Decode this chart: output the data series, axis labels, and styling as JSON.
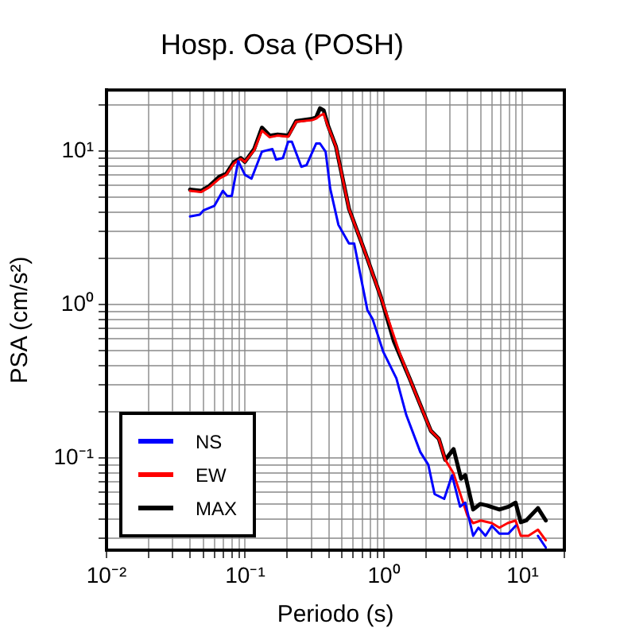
{
  "chart_data": {
    "type": "line",
    "title": "Hosp. Osa (POSH)",
    "xlabel": "Periodo (s)",
    "ylabel": "PSA (cm/s²)",
    "log": "xy",
    "grid": true,
    "legend": "bottom left",
    "marker": "none",
    "line_style": "solid",
    "xlim": [
      0.01,
      20
    ],
    "ylim": [
      0.025,
      25
    ],
    "xticks": [
      {
        "value": 0.01,
        "label": "10⁻²"
      },
      {
        "value": 0.02,
        "label": null
      },
      {
        "value": 0.03,
        "label": null
      },
      {
        "value": 0.04,
        "label": null
      },
      {
        "value": 0.05,
        "label": null
      },
      {
        "value": 0.06,
        "label": null
      },
      {
        "value": 0.07,
        "label": null
      },
      {
        "value": 0.08,
        "label": null
      },
      {
        "value": 0.09,
        "label": null
      },
      {
        "value": 0.1,
        "label": "10⁻¹"
      },
      {
        "value": 0.2,
        "label": null
      },
      {
        "value": 0.3,
        "label": null
      },
      {
        "value": 0.4,
        "label": null
      },
      {
        "value": 0.5,
        "label": null
      },
      {
        "value": 0.6,
        "label": null
      },
      {
        "value": 0.7,
        "label": null
      },
      {
        "value": 0.8,
        "label": null
      },
      {
        "value": 0.9,
        "label": null
      },
      {
        "value": 1,
        "label": "10⁰"
      },
      {
        "value": 2,
        "label": null
      },
      {
        "value": 3,
        "label": null
      },
      {
        "value": 4,
        "label": null
      },
      {
        "value": 5,
        "label": null
      },
      {
        "value": 6,
        "label": null
      },
      {
        "value": 7,
        "label": null
      },
      {
        "value": 8,
        "label": null
      },
      {
        "value": 9,
        "label": null
      },
      {
        "value": 10,
        "label": "10¹"
      },
      {
        "value": 20,
        "label": null
      }
    ],
    "yticks": [
      {
        "value": 0.03,
        "label": null
      },
      {
        "value": 0.04,
        "label": null
      },
      {
        "value": 0.05,
        "label": null
      },
      {
        "value": 0.06,
        "label": null
      },
      {
        "value": 0.07,
        "label": null
      },
      {
        "value": 0.08,
        "label": null
      },
      {
        "value": 0.09,
        "label": null
      },
      {
        "value": 0.1,
        "label": "10⁻¹"
      },
      {
        "value": 0.2,
        "label": null
      },
      {
        "value": 0.3,
        "label": null
      },
      {
        "value": 0.4,
        "label": null
      },
      {
        "value": 0.5,
        "label": null
      },
      {
        "value": 0.6,
        "label": null
      },
      {
        "value": 0.7,
        "label": null
      },
      {
        "value": 0.8,
        "label": null
      },
      {
        "value": 0.9,
        "label": null
      },
      {
        "value": 1,
        "label": "10⁰"
      },
      {
        "value": 2,
        "label": null
      },
      {
        "value": 3,
        "label": null
      },
      {
        "value": 4,
        "label": null
      },
      {
        "value": 5,
        "label": null
      },
      {
        "value": 6,
        "label": null
      },
      {
        "value": 7,
        "label": null
      },
      {
        "value": 8,
        "label": null
      },
      {
        "value": 9,
        "label": null
      },
      {
        "value": 10,
        "label": "10¹"
      },
      {
        "value": 20,
        "label": null
      }
    ],
    "series": [
      {
        "name": "NS",
        "color": "#0000ff",
        "x": [
          0.04,
          0.047,
          0.05,
          0.06,
          0.069,
          0.074,
          0.08,
          0.089,
          0.0995,
          0.111,
          0.132,
          0.143,
          0.157,
          0.167,
          0.187,
          0.204,
          0.217,
          0.254,
          0.277,
          0.325,
          0.346,
          0.38,
          0.41,
          0.47,
          0.56,
          0.61,
          0.76,
          0.83,
          0.99,
          1.23,
          1.45,
          1.83,
          2.09,
          2.32,
          2.72,
          3.1,
          3.54,
          3.86,
          4.4,
          4.8,
          5.4,
          6.0,
          6.8,
          7.9,
          8.9,
          10,
          10.8,
          12.9,
          14.7
        ],
        "values": [
          3.75,
          3.85,
          4.1,
          4.4,
          5.5,
          5.1,
          5.1,
          8.6,
          7.0,
          6.6,
          9.9,
          10.1,
          10.3,
          8.8,
          9.0,
          11.5,
          11.5,
          7.9,
          8.1,
          11.2,
          11.2,
          9.9,
          5.7,
          3.3,
          2.5,
          2.5,
          0.92,
          0.8,
          0.49,
          0.33,
          0.19,
          0.109,
          0.09,
          0.058,
          0.054,
          0.077,
          0.048,
          0.051,
          0.031,
          0.035,
          0.031,
          0.036,
          0.032,
          0.032,
          0.036,
          null,
          null,
          0.031,
          0.026
        ]
      },
      {
        "name": "EW",
        "color": "#ff0000",
        "x": [
          0.04,
          0.048,
          0.055,
          0.065,
          0.073,
          0.083,
          0.093,
          0.0995,
          0.116,
          0.132,
          0.15,
          0.171,
          0.204,
          0.233,
          0.303,
          0.325,
          0.346,
          0.368,
          0.395,
          0.451,
          0.56,
          0.73,
          0.95,
          1.29,
          1.53,
          2.18,
          2.49,
          2.77,
          3.18,
          4.0,
          4.4,
          5.0,
          6.0,
          6.8,
          7.8,
          8.9,
          9.7,
          11.0,
          12.9,
          14.7
        ],
        "values": [
          5.5,
          5.4,
          5.8,
          6.6,
          7.0,
          8.3,
          8.9,
          8.5,
          10.1,
          13.6,
          12.3,
          12.6,
          12.4,
          15.5,
          15.9,
          16.3,
          17.0,
          17.5,
          14.5,
          10.7,
          4.2,
          2.2,
          1.12,
          0.49,
          0.33,
          0.15,
          0.133,
          0.097,
          0.079,
          0.042,
          0.0375,
          0.039,
          0.0375,
          0.035,
          0.0375,
          0.039,
          0.031,
          0.031,
          0.034,
          0.029
        ]
      },
      {
        "name": "MAX",
        "color": "#000000",
        "x": [
          0.04,
          0.048,
          0.055,
          0.065,
          0.073,
          0.083,
          0.093,
          0.0995,
          0.116,
          0.132,
          0.15,
          0.171,
          0.204,
          0.233,
          0.303,
          0.325,
          0.346,
          0.368,
          0.395,
          0.451,
          0.56,
          0.73,
          0.95,
          1.18,
          1.53,
          2.18,
          2.49,
          2.77,
          3.18,
          3.6,
          3.86,
          4.4,
          4.94,
          5.49,
          6.8,
          7.9,
          8.9,
          9.7,
          10.6,
          12.9,
          14.7
        ],
        "values": [
          5.6,
          5.5,
          5.9,
          6.8,
          7.1,
          8.5,
          9.0,
          8.5,
          10.3,
          14.2,
          12.6,
          12.8,
          12.6,
          15.7,
          16.2,
          16.6,
          19.0,
          18.4,
          14.7,
          10.7,
          4.2,
          2.2,
          1.12,
          0.575,
          0.33,
          0.15,
          0.133,
          0.097,
          0.114,
          0.073,
          0.077,
          0.046,
          0.05,
          0.049,
          0.046,
          0.048,
          0.051,
          0.038,
          0.039,
          0.047,
          0.039
        ]
      }
    ]
  }
}
